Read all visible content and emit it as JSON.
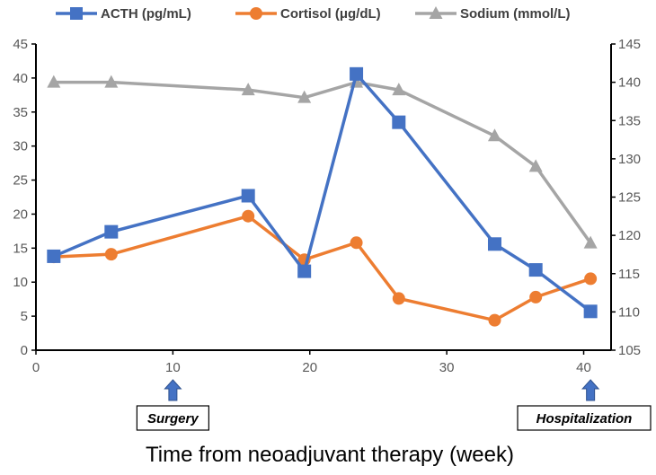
{
  "chart_data": {
    "type": "line",
    "xlabel": "Time from neoadjuvant therapy (week)",
    "x_axis": {
      "range": [
        0,
        42
      ],
      "ticks": [
        0,
        10,
        20,
        30,
        40
      ]
    },
    "y_left": {
      "range": [
        0,
        45
      ],
      "ticks": [
        0,
        5,
        10,
        15,
        20,
        25,
        30,
        35,
        40,
        45
      ]
    },
    "y_right": {
      "range": [
        105,
        145
      ],
      "ticks": [
        105,
        110,
        115,
        120,
        125,
        130,
        135,
        140,
        145
      ]
    },
    "legend_position": "top",
    "series": [
      {
        "name": "ACTH (pg/mL)",
        "axis": "left",
        "marker": "square",
        "color": "#4472C4",
        "x": [
          1.3,
          5.5,
          15.5,
          19.6,
          23.4,
          26.5,
          33.5,
          36.5,
          40.5
        ],
        "values": [
          13.8,
          17.4,
          22.7,
          11.6,
          40.6,
          33.5,
          15.6,
          11.8,
          5.7
        ]
      },
      {
        "name": "Cortisol (μg/dL)",
        "axis": "left",
        "marker": "circle",
        "color": "#ED7D31",
        "x": [
          1.3,
          5.5,
          15.5,
          19.6,
          23.4,
          26.5,
          33.5,
          36.5,
          40.5
        ],
        "values": [
          13.7,
          14.1,
          19.7,
          13.3,
          15.8,
          7.6,
          4.4,
          7.8,
          10.5
        ]
      },
      {
        "name": "Sodium (mmol/L)",
        "axis": "right",
        "marker": "triangle",
        "color": "#A5A5A5",
        "x": [
          1.3,
          5.5,
          15.5,
          19.6,
          23.4,
          26.5,
          33.5,
          36.5,
          40.5
        ],
        "values": [
          140,
          140,
          139,
          138,
          140,
          139,
          133,
          129,
          119
        ]
      }
    ],
    "annotations": [
      {
        "label": "Surgery",
        "x": 10
      },
      {
        "label": "Hospitalization",
        "x": 40.5
      }
    ]
  }
}
